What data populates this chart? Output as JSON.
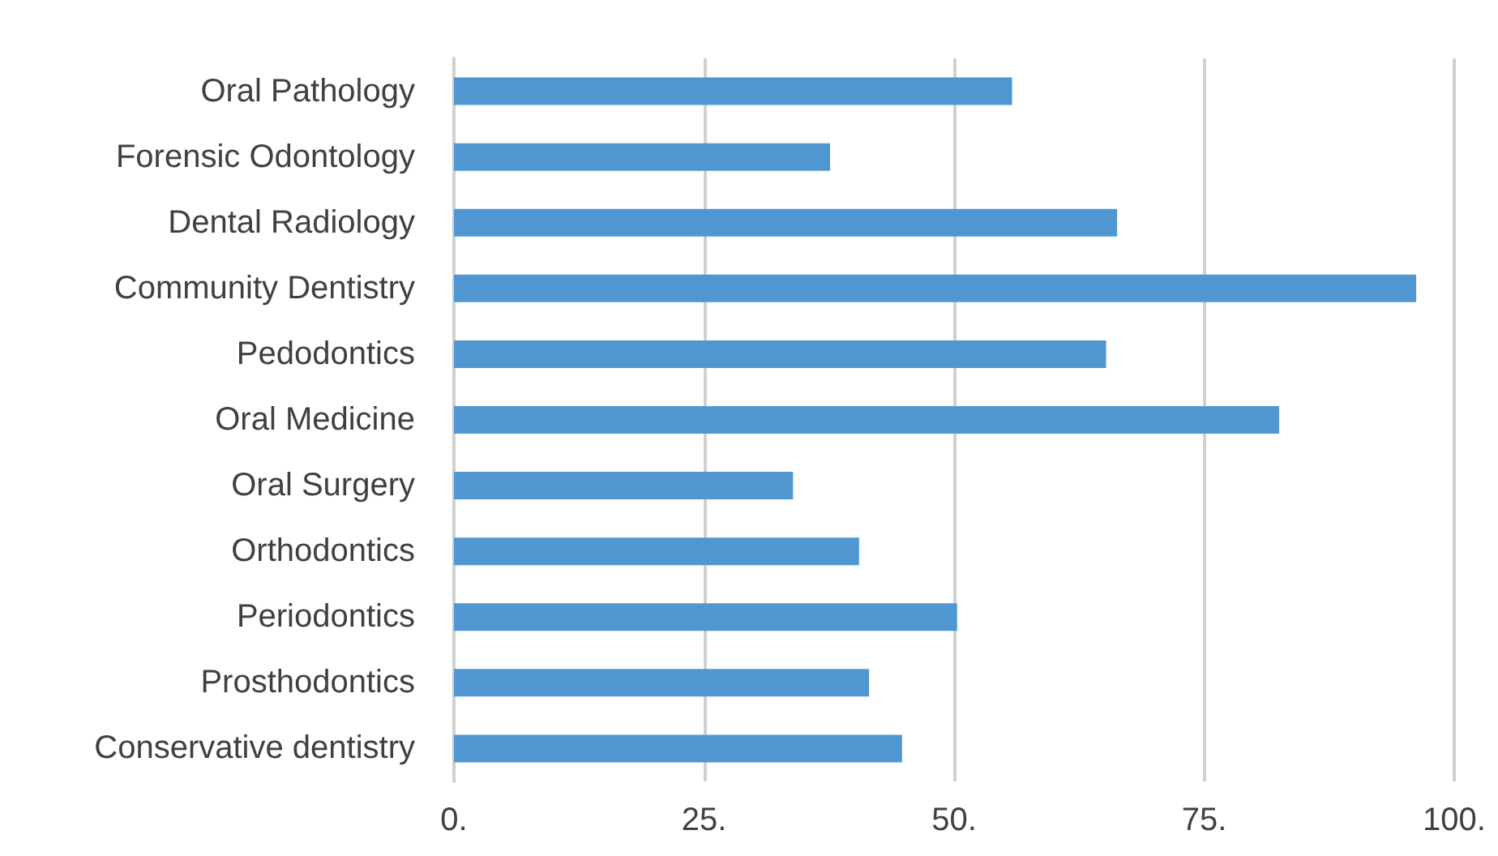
{
  "chart_data": {
    "type": "bar",
    "orientation": "horizontal",
    "categories": [
      "Oral Pathology",
      "Forensic Odontology",
      "Dental Radiology",
      "Community Dentistry",
      "Pedodontics",
      "Oral Medicine",
      "Oral Surgery",
      "Orthodontics",
      "Periodontics",
      "Prosthodontics",
      "Conservative dentistry"
    ],
    "values": [
      55.8,
      37.6,
      66.3,
      96.2,
      65.2,
      82.5,
      33.9,
      40.5,
      50.3,
      41.5,
      44.8
    ],
    "color": "#5097d1",
    "xlim": [
      0,
      100
    ],
    "xticks": [
      {
        "value": 0,
        "label": "0."
      },
      {
        "value": 25,
        "label": "25."
      },
      {
        "value": 50,
        "label": "50."
      },
      {
        "value": 75,
        "label": "75."
      },
      {
        "value": 100,
        "label": "100."
      }
    ],
    "grid": "x"
  }
}
